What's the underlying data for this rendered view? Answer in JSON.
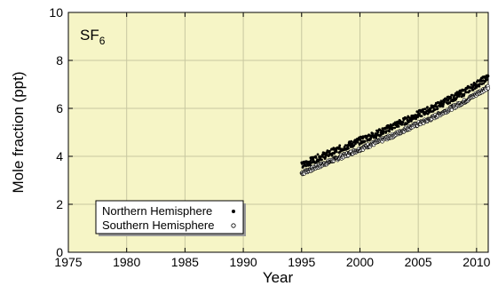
{
  "chart_data": {
    "type": "scatter",
    "species_label": {
      "main": "SF",
      "subscript": "6"
    },
    "xlabel": "Year",
    "ylabel": "Mole fraction (ppt)",
    "xlim": [
      1975,
      2011
    ],
    "ylim": [
      0,
      10
    ],
    "x_ticks": [
      1975,
      1980,
      1985,
      1990,
      1995,
      2000,
      2005,
      2010
    ],
    "y_ticks": [
      0,
      2,
      4,
      6,
      8,
      10
    ],
    "grid": true,
    "legend_position": "bottom-left",
    "series": [
      {
        "name": "Northern Hemisphere",
        "marker": "filled-circle",
        "color": "#000000",
        "x": [
          1995.0,
          1996.0,
          1997.0,
          1998.0,
          1999.0,
          2000.0,
          2001.0,
          2002.0,
          2003.0,
          2004.0,
          2005.0,
          2006.0,
          2007.0,
          2008.0,
          2009.0,
          2010.0,
          2011.0
        ],
        "values": [
          3.6,
          3.85,
          4.05,
          4.25,
          4.45,
          4.65,
          4.85,
          5.05,
          5.3,
          5.5,
          5.75,
          5.95,
          6.2,
          6.45,
          6.7,
          7.0,
          7.3
        ]
      },
      {
        "name": "Southern Hemisphere",
        "marker": "open-circle",
        "color": "#ffffff",
        "x": [
          1995.0,
          1996.0,
          1997.0,
          1998.0,
          1999.0,
          2000.0,
          2001.0,
          2002.0,
          2003.0,
          2004.0,
          2005.0,
          2006.0,
          2007.0,
          2008.0,
          2009.0,
          2010.0,
          2011.0
        ],
        "values": [
          3.3,
          3.5,
          3.7,
          3.9,
          4.1,
          4.3,
          4.5,
          4.7,
          4.9,
          5.15,
          5.35,
          5.55,
          5.8,
          6.05,
          6.3,
          6.6,
          6.9
        ]
      }
    ]
  },
  "colors": {
    "plot_background": "#f6f5c6",
    "grid": "#c8c8a0",
    "axis": "#000000"
  }
}
